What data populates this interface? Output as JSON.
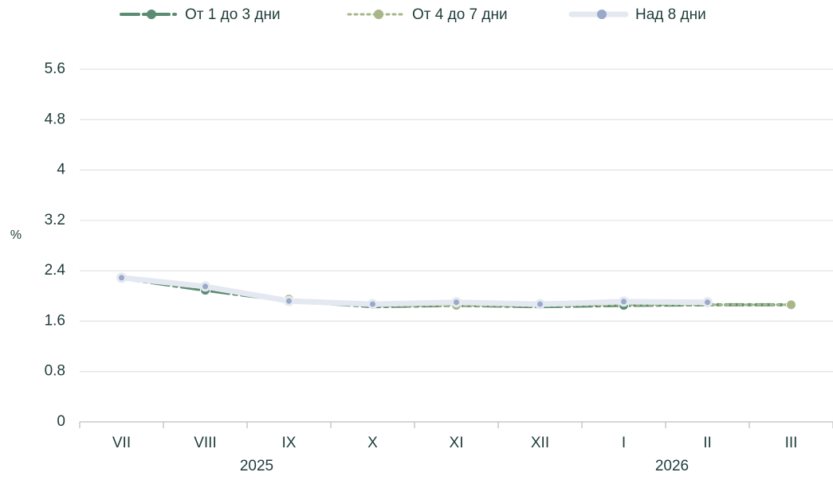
{
  "chart_data": {
    "type": "line",
    "categories": [
      "VII",
      "VIII",
      "IX",
      "X",
      "XI",
      "XII",
      "I",
      "II",
      "III"
    ],
    "years": [
      "2025",
      "2026"
    ],
    "ylabel": "%",
    "series": [
      {
        "name": "От 1 до 3 дни",
        "color": "#5b8c72",
        "dash": "22 6 4 6",
        "values": [
          2.28,
          2.09,
          1.92,
          1.83,
          1.85,
          1.83,
          1.85,
          1.86,
          1.86
        ]
      },
      {
        "name": "От 4 до 7 дни",
        "color": "#a8b78a",
        "dash": "3 5",
        "values": [
          2.27,
          2.12,
          1.95,
          1.84,
          1.85,
          1.84,
          1.86,
          1.86,
          1.86
        ]
      },
      {
        "name": "Над 8 дни",
        "color": "#e4e9f1",
        "marker_color": "#9aa8c9",
        "dash": "",
        "values": [
          2.29,
          2.15,
          1.92,
          1.87,
          1.9,
          1.87,
          1.91,
          1.9,
          null
        ]
      }
    ],
    "ylim": [
      0,
      5.6
    ],
    "yticks": [
      0,
      0.8,
      1.6,
      2.4,
      3.2,
      4,
      4.8,
      5.6
    ],
    "grid": true
  }
}
